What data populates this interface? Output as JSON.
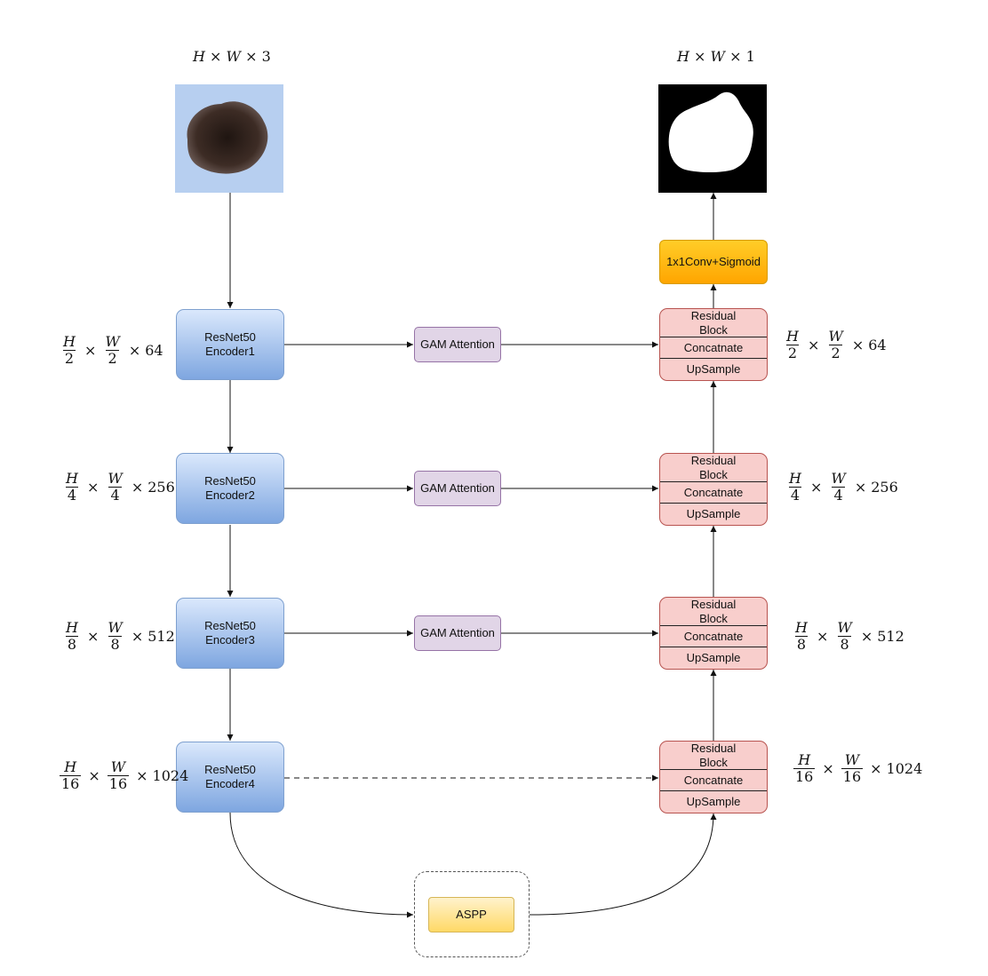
{
  "input_dims": {
    "h": "H",
    "w": "W",
    "c": "3",
    "times": "×"
  },
  "output_dims": {
    "h": "H",
    "w": "W",
    "c": "1",
    "times": "×"
  },
  "encoders": [
    {
      "line1": "ResNet50",
      "line2": "Encoder1"
    },
    {
      "line1": "ResNet50",
      "line2": "Encoder2"
    },
    {
      "line1": "ResNet50",
      "line2": "Encoder3"
    },
    {
      "line1": "ResNet50",
      "line2": "Encoder4"
    }
  ],
  "attention": [
    {
      "label": "GAM Attention"
    },
    {
      "label": "GAM Attention"
    },
    {
      "label": "GAM Attention"
    }
  ],
  "decoders": [
    {
      "res1": "Residual",
      "res2": "Block",
      "concat": "Concatnate",
      "up": "UpSample"
    },
    {
      "res1": "Residual",
      "res2": "Block",
      "concat": "Concatnate",
      "up": "UpSample"
    },
    {
      "res1": "Residual",
      "res2": "Block",
      "concat": "Concatnate",
      "up": "UpSample"
    },
    {
      "res1": "Residual",
      "res2": "Block",
      "concat": "Concatnate",
      "up": "UpSample"
    }
  ],
  "conv_label": "1x1Conv+Sigmoid",
  "aspp_label": "ASPP",
  "scales": [
    {
      "h": "H",
      "w": "W",
      "den": "2",
      "ch": "64",
      "times": "×"
    },
    {
      "h": "H",
      "w": "W",
      "den": "4",
      "ch": "256",
      "times": "×"
    },
    {
      "h": "H",
      "w": "W",
      "den": "8",
      "ch": "512",
      "times": "×"
    },
    {
      "h": "H",
      "w": "W",
      "den": "16",
      "ch": "1024",
      "times": "×"
    }
  ],
  "colors": {
    "encoder_fill_top": "#dae8fc",
    "encoder_fill_bottom": "#7ea6e0",
    "attention_fill": "#e1d5e7",
    "decoder_fill": "#f8cecc",
    "conv_fill": "#ffb31a",
    "aspp_fill": "#ffe38a",
    "input_background": "#b7cff0",
    "output_background": "#000000"
  },
  "images": {
    "input": "dermoscopy lesion image",
    "output": "binary segmentation mask"
  }
}
